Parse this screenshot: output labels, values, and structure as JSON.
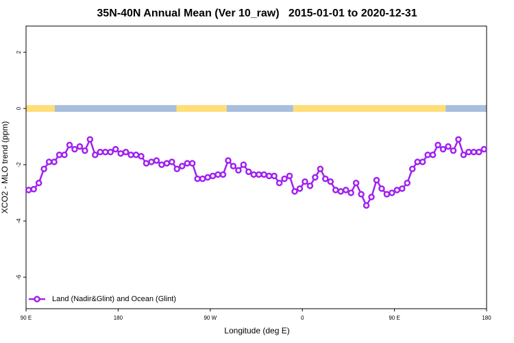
{
  "chart_data": {
    "type": "line",
    "title": "35N-40N Annual Mean (Ver 10_raw)   2015-01-01 to 2020-12-31",
    "x_label": "Longitude (deg E)",
    "y_label": "XCO2 - MLO trend (ppm)",
    "xlim": [
      90,
      540
    ],
    "ylim": [
      -7.12,
      2.93
    ],
    "xticks": [
      {
        "value": 90,
        "label": "90 E"
      },
      180,
      {
        "value": 270,
        "label": "90 W"
      },
      {
        "value": 360,
        "label": "0"
      },
      {
        "value": 450,
        "label": "90 E"
      },
      {
        "value": 540,
        "label": "180"
      }
    ],
    "yticks": [
      -6,
      -4,
      -2,
      0,
      2
    ],
    "legend": "bottom-left",
    "surface_band": {
      "y": 0,
      "half_height": 0.12,
      "segments": [
        {
          "from": 90,
          "to": 118,
          "color": "#ffdd77"
        },
        {
          "from": 118,
          "to": 237,
          "color": "#a8bedc"
        },
        {
          "from": 237,
          "to": 286,
          "color": "#ffdd77"
        },
        {
          "from": 286,
          "to": 351,
          "color": "#a8bedc"
        },
        {
          "from": 351,
          "to": 500,
          "color": "#ffdd77"
        },
        {
          "from": 500,
          "to": 540,
          "color": "#a8bedc"
        }
      ]
    },
    "x": [
      92.5,
      97.5,
      102.5,
      107.5,
      112.5,
      117.5,
      122.5,
      127.5,
      132.5,
      137.5,
      142.5,
      147.5,
      152.5,
      157.5,
      162.5,
      167.5,
      172.5,
      177.5,
      182.5,
      187.5,
      192.5,
      197.5,
      202.5,
      207.5,
      212.5,
      217.5,
      222.5,
      227.5,
      232.5,
      237.5,
      242.5,
      247.5,
      252.5,
      257.5,
      262.5,
      267.5,
      272.5,
      277.5,
      282.5,
      287.5,
      292.5,
      297.5,
      302.5,
      307.5,
      312.5,
      317.5,
      322.5,
      327.5,
      332.5,
      337.5,
      342.5,
      347.5,
      352.5,
      357.5,
      362.5,
      367.5,
      372.5,
      377.5,
      382.5,
      387.5,
      392.5,
      397.5,
      402.5,
      407.5,
      412.5,
      417.5,
      422.5,
      427.5,
      432.5,
      437.5,
      442.5,
      447.5,
      452.5,
      457.5,
      462.5,
      467.5,
      472.5,
      477.5,
      482.5,
      487.5,
      492.5,
      497.5,
      502.5,
      507.5,
      512.5,
      517.5,
      522.5,
      527.5,
      532.5,
      537.5
    ],
    "series": [
      {
        "name": "Land (Nadir&Glint) and Ocean (Glint)",
        "color": "#a020f0",
        "values": [
          -2.9,
          -2.87,
          -2.65,
          -2.15,
          -1.9,
          -1.9,
          -1.65,
          -1.65,
          -1.3,
          -1.45,
          -1.35,
          -1.5,
          -1.1,
          -1.65,
          -1.55,
          -1.55,
          -1.55,
          -1.45,
          -1.6,
          -1.55,
          -1.65,
          -1.65,
          -1.7,
          -1.95,
          -1.9,
          -1.85,
          -2.0,
          -1.95,
          -1.9,
          -2.15,
          -2.05,
          -1.95,
          -1.95,
          -2.5,
          -2.5,
          -2.45,
          -2.4,
          -2.35,
          -2.35,
          -1.85,
          -2.05,
          -2.2,
          -2.0,
          -2.25,
          -2.35,
          -2.35,
          -2.35,
          -2.4,
          -2.4,
          -2.65,
          -2.5,
          -2.4,
          -2.95,
          -2.85,
          -2.6,
          -2.75,
          -2.45,
          -2.15,
          -2.5,
          -2.6,
          -2.9,
          -2.95,
          -2.9,
          -3.0,
          -2.65,
          -3.05,
          -3.45,
          -3.15,
          -2.55,
          -2.85,
          -3.05,
          -3.0,
          -2.9,
          -2.85,
          -2.65,
          -2.15,
          -1.9,
          -1.9,
          -1.65,
          -1.65,
          -1.3,
          -1.45,
          -1.35,
          -1.5,
          -1.1,
          -1.65,
          -1.55,
          -1.55,
          -1.55,
          -1.45
        ]
      }
    ]
  }
}
